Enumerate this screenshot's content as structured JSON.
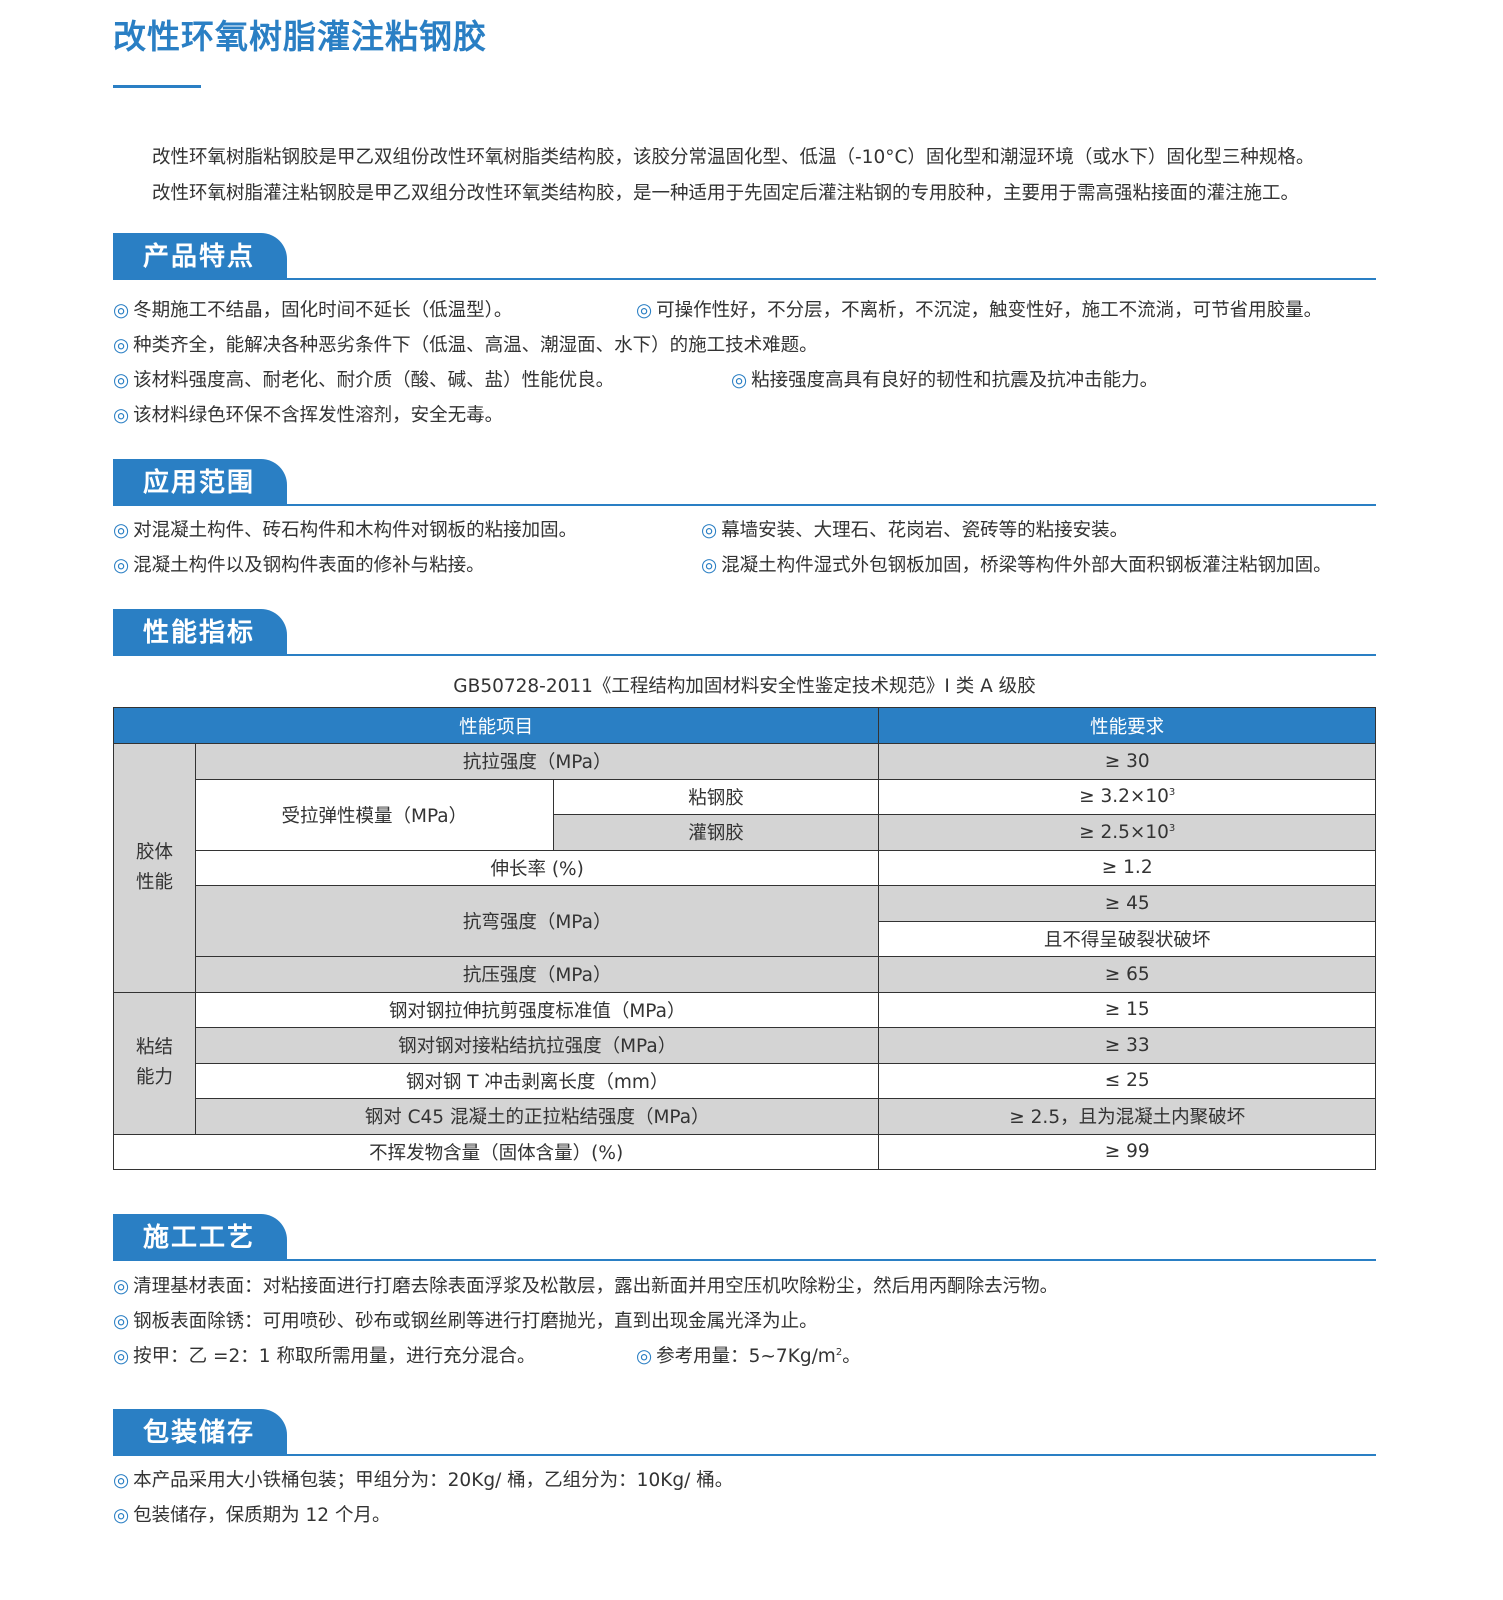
{
  "title": "改性环氧树脂灌注粘钢胶",
  "intro": [
    "改性环氧树脂粘钢胶是甲乙双组份改性环氧树脂类结构胶，该胶分常温固化型、低温（-10°C）固化型和潮湿环境（或水下）固化型三种规格。",
    "改性环氧树脂灌注粘钢胶是甲乙双组分改性环氧类结构胶，是一种适用于先固定后灌注粘钢的专用胶种，主要用于需高强粘接面的灌注施工。"
  ],
  "marker": "◎",
  "accent": "#2a7fc4",
  "sections": {
    "features": {
      "heading": "产品特点",
      "items": [
        "冬期施工不结晶，固化时间不延长（低温型）。",
        "可操作性好，不分层，不离析，不沉淀，触变性好，施工不流淌，可节省用胶量。",
        "种类齐全，能解决各种恶劣条件下（低温、高温、潮湿面、水下）的施工技术难题。",
        "该材料强度高、耐老化、耐介质（酸、碱、盐）性能优良。",
        "粘接强度高具有良好的韧性和抗震及抗冲击能力。",
        "该材料绿色环保不含挥发性溶剂，安全无毒。"
      ]
    },
    "scope": {
      "heading": "应用范围",
      "items": [
        "对混凝土构件、砖石构件和木构件对钢板的粘接加固。",
        "幕墙安装、大理石、花岗岩、瓷砖等的粘接安装。",
        "混凝土构件以及钢构件表面的修补与粘接。",
        "混凝土构件湿式外包钢板加固，桥梁等构件外部大面积钢板灌注粘钢加固。"
      ]
    },
    "performance": {
      "heading": "性能指标",
      "caption": "GB50728-2011《工程结构加固材料安全性鉴定技术规范》I 类 A 级胶",
      "table": {
        "headers": [
          "性能项目",
          "性能要求"
        ],
        "group1": "胶体\n性能",
        "group2": "粘结\n能力",
        "tensile": "抗拉强度（MPa）",
        "tensile_req": "≥ 30",
        "modulus": "受拉弹性模量（MPa）",
        "modulus_a": "粘钢胶",
        "modulus_a_req": "≥ 3.2×10",
        "modulus_b": "灌钢胶",
        "modulus_b_req": "≥ 2.5×10",
        "exp": "3",
        "elong": "伸长率 (%)",
        "elong_req": "≥ 1.2",
        "bend": "抗弯强度（MPa）",
        "bend_req1": "≥ 45",
        "bend_req2": "且不得呈破裂状破坏",
        "comp": "抗压强度（MPa）",
        "comp_req": "≥ 65",
        "shear": "钢对钢拉伸抗剪强度标准值（MPa）",
        "shear_req": "≥ 15",
        "butt": "钢对钢对接粘结抗拉强度（MPa）",
        "butt_req": "≥ 33",
        "peel": "钢对钢 T 冲击剥离长度（mm）",
        "peel_req": "≤ 25",
        "c45": "钢对 C45 混凝土的正拉粘结强度（MPa）",
        "c45_req": "≥ 2.5，且为混凝土内聚破坏",
        "solid": "不挥发物含量（固体含量）(%)",
        "solid_req": "≥ 99"
      }
    },
    "process": {
      "heading": "施工工艺",
      "items": [
        "清理基材表面：对粘接面进行打磨去除表面浮浆及松散层，露出新面并用空压机吹除粉尘，然后用丙酮除去污物。",
        "钢板表面除锈：可用喷砂、砂布或钢丝刷等进行打磨抛光，直到出现金属光泽为止。",
        "按甲：乙 =2：1 称取所需用量，进行充分混合。",
        "参考用量：5~7Kg/m",
        "。"
      ],
      "sup": "2"
    },
    "storage": {
      "heading": "包装储存",
      "items": [
        "本产品采用大小铁桶包装；甲组分为：20Kg/ 桶，乙组分为：10Kg/ 桶。",
        "包装储存，保质期为 12 个月。"
      ]
    }
  }
}
